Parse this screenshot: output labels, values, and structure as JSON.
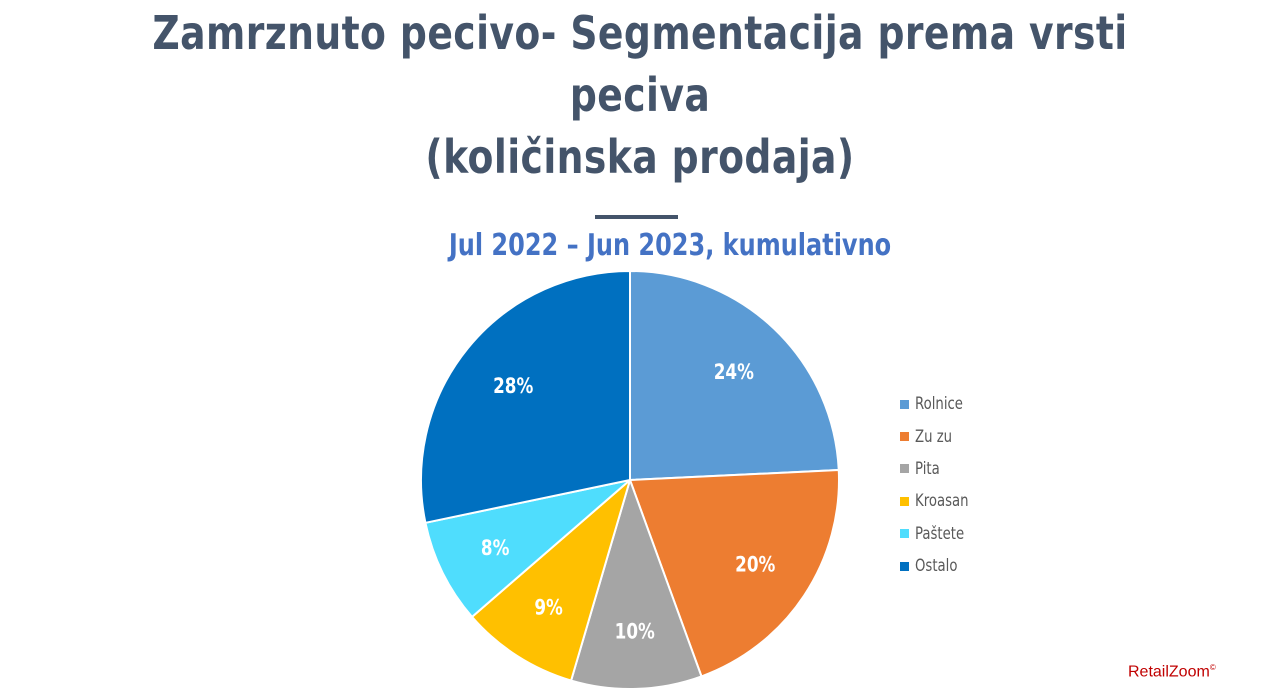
{
  "title_line1": "Zamrznuto pecivo- Segmentacija prema vrsti peciva",
  "title_line2": "(količinska prodaja)",
  "chart_data": {
    "type": "pie",
    "title": "Jul 2022 – Jun 2023, kumulativno",
    "categories": [
      "Rolnice",
      "Zu zu",
      "Pita",
      "Kroasan",
      "Paštete",
      "Ostalo"
    ],
    "values": [
      24,
      20,
      10,
      9,
      8,
      28
    ],
    "data_labels": [
      "24%",
      "20%",
      "10%",
      "9%",
      "8%",
      "28%"
    ],
    "colors": [
      "#5B9BD5",
      "#ED7D31",
      "#A5A5A5",
      "#FFC000",
      "#4FDDFD",
      "#0070C0"
    ],
    "start": "12 o'clock",
    "direction": "clockwise",
    "legend_position": "right"
  },
  "brand": {
    "name": "RetailZoom",
    "mark": "©"
  }
}
